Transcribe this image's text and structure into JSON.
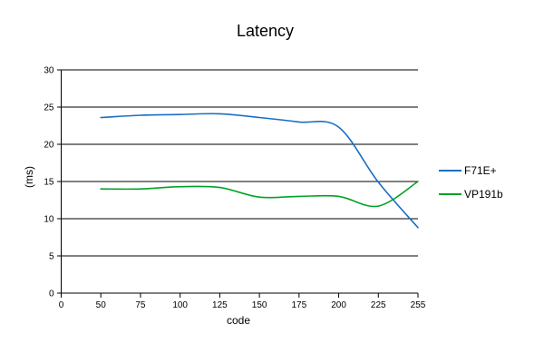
{
  "chart_data": {
    "type": "line",
    "title": "Latency",
    "xlabel": "code",
    "ylabel": "(ms)",
    "grid": "horizontal-black-lines",
    "background": "#ffffff",
    "x_axis": {
      "kind": "categorical-even-spacing",
      "tick_labels": [
        "0",
        "50",
        "75",
        "100",
        "125",
        "150",
        "175",
        "200",
        "225",
        "255"
      ]
    },
    "y_axis": {
      "ticks": [
        0,
        5,
        10,
        15,
        20,
        25,
        30
      ],
      "ylim": [
        0,
        30
      ]
    },
    "legend": {
      "position": "right",
      "border": "none"
    },
    "categories": [
      "50",
      "75",
      "100",
      "125",
      "150",
      "175",
      "200",
      "225",
      "255"
    ],
    "series": [
      {
        "name": "F71E+",
        "color": "#1a6fc4",
        "values": [
          23.6,
          23.9,
          24.0,
          24.1,
          23.6,
          23.0,
          22.3,
          14.9,
          8.8
        ]
      },
      {
        "name": "VP191b",
        "color": "#00a327",
        "values": [
          14.0,
          14.0,
          14.3,
          14.2,
          12.9,
          13.0,
          13.0,
          11.7,
          15.0
        ]
      }
    ]
  }
}
